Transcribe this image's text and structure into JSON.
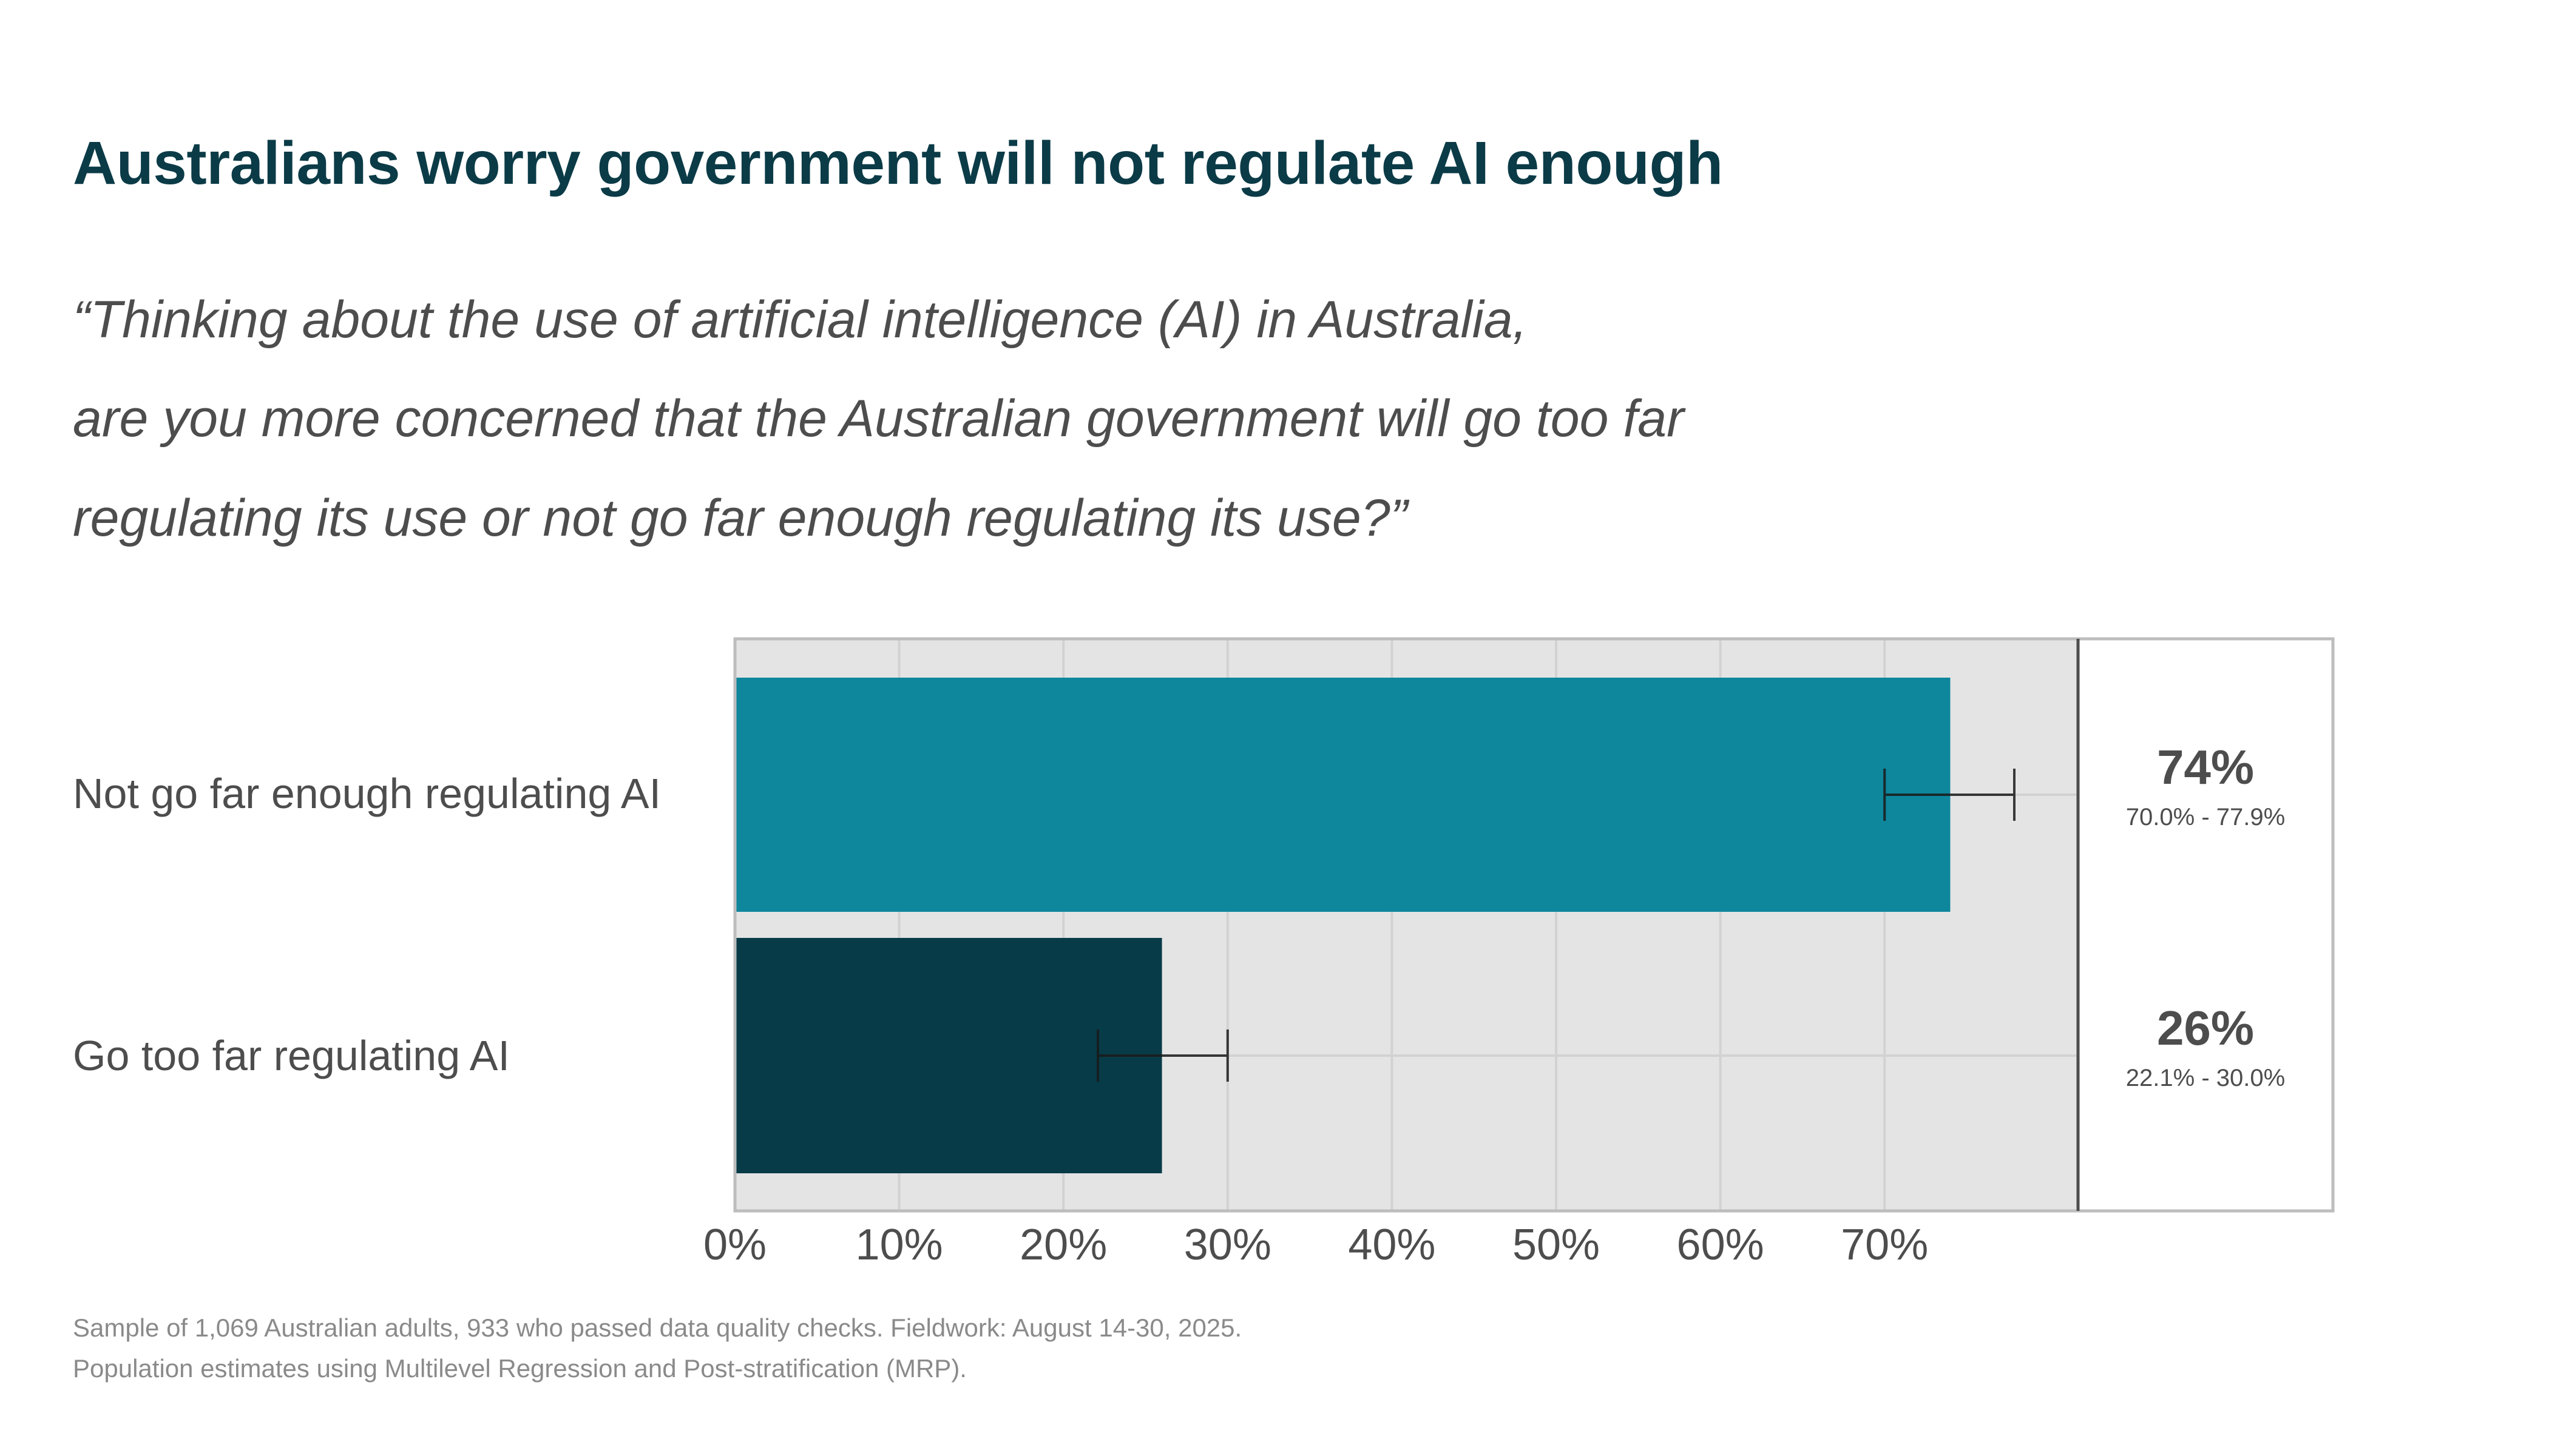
{
  "header": {
    "title": "Australians worry government will not regulate AI enough",
    "question_lines": [
      "“Thinking about the use of artificial intelligence (AI) in Australia,",
      "are you more concerned that the Australian government will go too far",
      "regulating its use or not go far enough regulating its use?”"
    ]
  },
  "footer": {
    "lines": [
      "Sample of 1,069 Australian adults, 933 who passed data quality checks. Fieldwork: August 14-30, 2025.",
      "Population estimates using Multilevel Regression and Post-stratification (MRP)."
    ]
  },
  "colors": {
    "title": "#0b3b47",
    "bar_not_far_enough": "#0e869c",
    "bar_too_far": "#073b47",
    "panel_bg": "#e4e4e4",
    "grid": "#d2d2d2",
    "error_bar": "#1a1a1a"
  },
  "chart_data": {
    "type": "bar",
    "orientation": "horizontal",
    "title": "Australians worry government will not regulate AI enough",
    "xlabel": "",
    "ylabel": "",
    "categories": [
      "Not go far enough regulating AI",
      "Go too far regulating AI"
    ],
    "values": [
      74,
      26
    ],
    "value_labels": [
      "74%",
      "26%"
    ],
    "ci_low": [
      70.0,
      22.1
    ],
    "ci_high": [
      77.9,
      30.0
    ],
    "ci_labels": [
      "70.0% - 77.9%",
      "22.1% - 30.0%"
    ],
    "xlim": [
      0,
      82
    ],
    "x_ticks": [
      0,
      10,
      20,
      30,
      40,
      50,
      60,
      70
    ],
    "x_tick_labels": [
      "0%",
      "10%",
      "20%",
      "30%",
      "40%",
      "50%",
      "60%",
      "70%"
    ],
    "grid": true,
    "legend": "none"
  }
}
